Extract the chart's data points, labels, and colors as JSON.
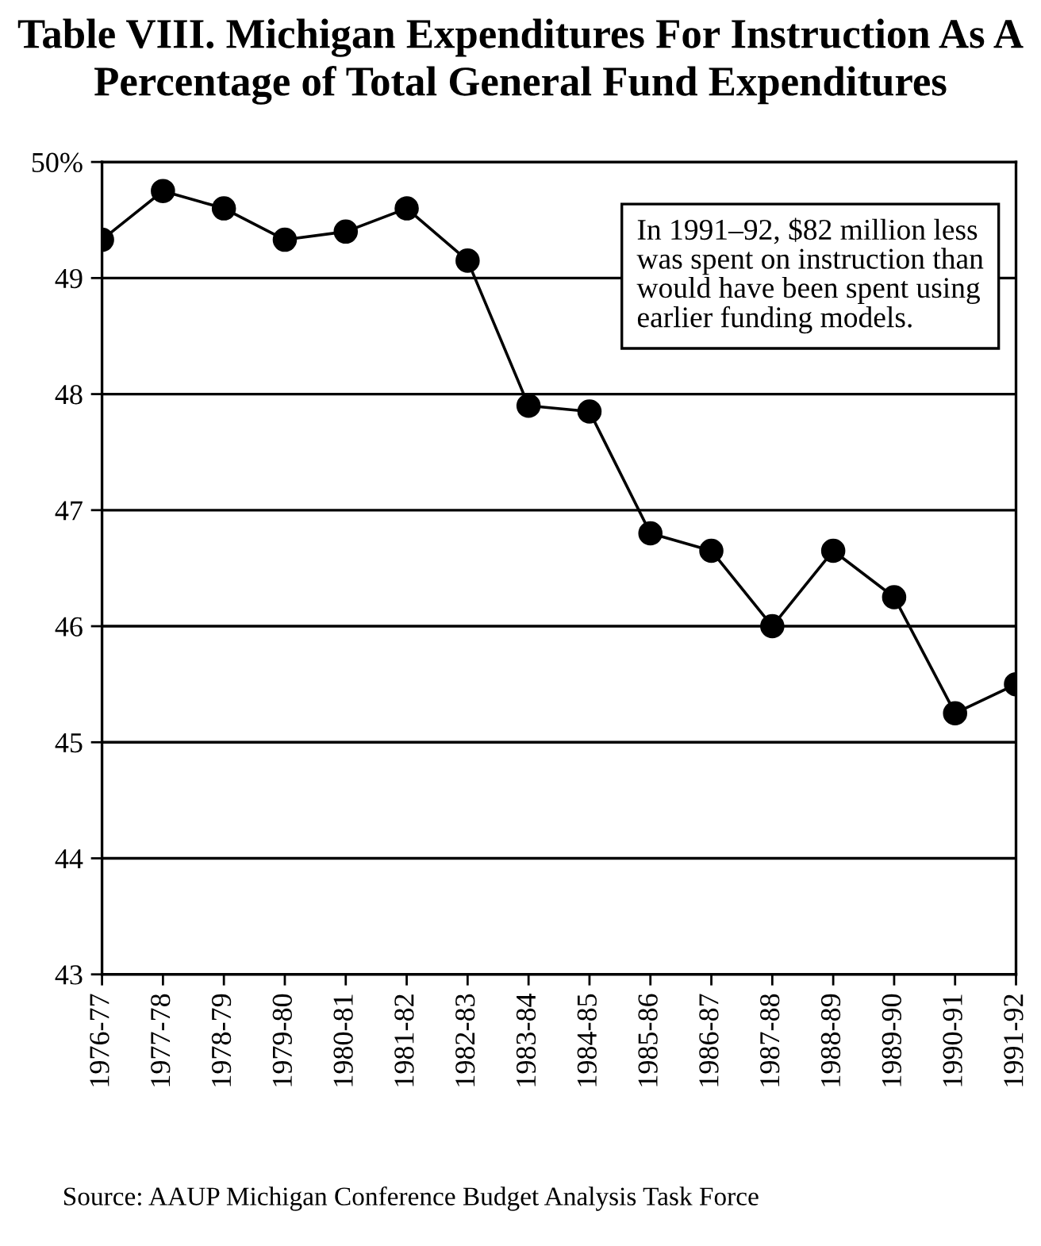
{
  "chart_data": {
    "type": "line",
    "title": "Table VIII. Michigan Expenditures For Instruction As A\nPercentage of Total General Fund Expenditures",
    "categories": [
      "1976-77",
      "1977-78",
      "1978-79",
      "1979-80",
      "1980-81",
      "1981-82",
      "1982-83",
      "1983-84",
      "1984-85",
      "1985-86",
      "1986-87",
      "1987-88",
      "1988-89",
      "1989-90",
      "1990-91",
      "1991-92"
    ],
    "series": [
      {
        "color": "#000000",
        "values": [
          49.33,
          49.75,
          49.6,
          49.33,
          49.4,
          49.6,
          49.15,
          47.9,
          47.85,
          46.8,
          46.65,
          46.0,
          46.65,
          46.25,
          45.25,
          45.5
        ]
      }
    ],
    "ylim": [
      43,
      50
    ],
    "yticks": [
      43,
      44,
      45,
      46,
      47,
      48,
      49,
      {
        "value": 50,
        "label": "50%"
      }
    ],
    "grid": "y",
    "marker": "circle",
    "line_style": "solid",
    "legend": false,
    "annotations": [
      "In 1991–92, $82 million less\nwas spent on instruction than\nwould have been spent using\nearlier funding models.",
      "Source: AAUP Michigan Conference Budget Analysis Task Force"
    ]
  }
}
